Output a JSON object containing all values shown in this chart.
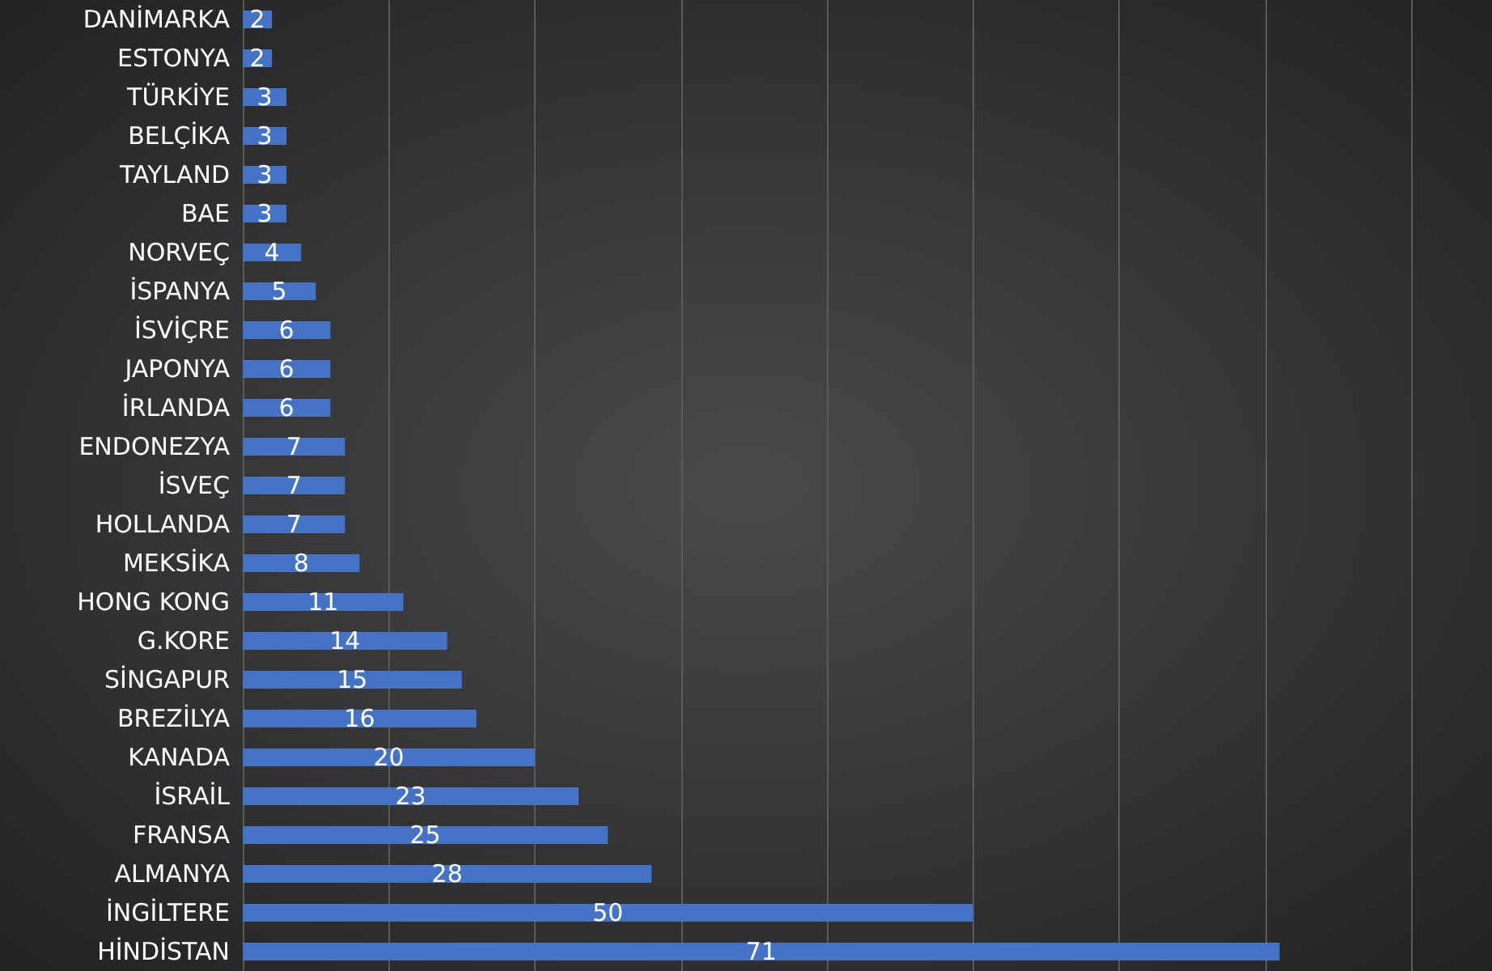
{
  "chart_data": {
    "type": "bar",
    "orientation": "horizontal",
    "categories": [
      "DANİMARKA",
      "ESTONYA",
      "TÜRKİYE",
      "BELÇİKA",
      "TAYLAND",
      "BAE",
      "NORVEÇ",
      "İSPANYA",
      "İSVİÇRE",
      "JAPONYA",
      "İRLANDA",
      "ENDONEZYA",
      "İSVEÇ",
      "HOLLANDA",
      "MEKSİKA",
      "HONG KONG",
      "G.KORE",
      "SİNGAPUR",
      "BREZİLYA",
      "KANADA",
      "İSRAİL",
      "FRANSA",
      "ALMANYA",
      "İNGİLTERE",
      "HİNDİSTAN"
    ],
    "values": [
      2,
      2,
      3,
      3,
      3,
      3,
      4,
      5,
      6,
      6,
      6,
      7,
      7,
      7,
      8,
      11,
      14,
      15,
      16,
      20,
      23,
      25,
      28,
      50,
      71
    ],
    "color": "#4472c4",
    "data_labels": true,
    "grid": "x",
    "tick_labels": "y"
  }
}
